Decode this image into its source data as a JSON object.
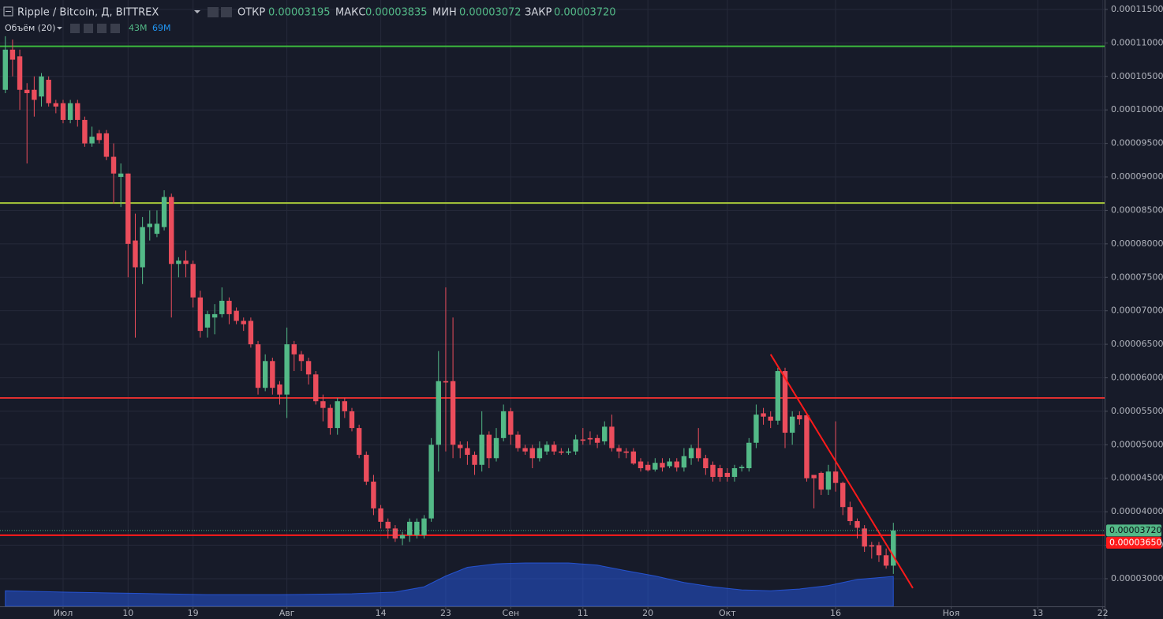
{
  "chart_data": {
    "type": "candlestick",
    "title": "Ripple / Bitcoin, Д, BITTREX",
    "ohlc_legend": [
      {
        "name": "ОТКР",
        "value": "0.00003195"
      },
      {
        "name": "МАКС",
        "value": "0.00003835"
      },
      {
        "name": "МИН",
        "value": "0.00003072"
      },
      {
        "name": "ЗАКР",
        "value": "0.00003720"
      }
    ],
    "volume_legend": {
      "name": "Объём (20)",
      "volume": "43M",
      "ma": "69M",
      "volume_color": "#53b987",
      "ma_color": "#2196f3"
    },
    "up_color": "#53b987",
    "down_color": "#eb4d5c",
    "grid": true,
    "xlim": [
      -8.74,
      144.26
    ],
    "xticks": [
      {
        "value": 0,
        "label": "Июл"
      },
      {
        "value": 9,
        "label": "10"
      },
      {
        "value": 18,
        "label": "19"
      },
      {
        "value": 31,
        "label": "Авг"
      },
      {
        "value": 44,
        "label": "14"
      },
      {
        "value": 53,
        "label": "23"
      },
      {
        "value": 62,
        "label": "Сен"
      },
      {
        "value": 72,
        "label": "11"
      },
      {
        "value": 81,
        "label": "20"
      },
      {
        "value": 92,
        "label": "Окт"
      },
      {
        "value": 107,
        "label": "16"
      },
      {
        "value": 123,
        "label": "Ноя"
      },
      {
        "value": 135,
        "label": "13"
      },
      {
        "value": 144,
        "label": "22"
      }
    ],
    "ylim": [
      2.587e-05,
      0.00011641
    ],
    "yticks": [
      {
        "value": 0.000115,
        "label": "0.00011500"
      },
      {
        "value": 0.00011,
        "label": "0.00011000"
      },
      {
        "value": 0.000105,
        "label": "0.00010500"
      },
      {
        "value": 0.0001,
        "label": "0.00010000"
      },
      {
        "value": 9.5e-05,
        "label": "0.00009500"
      },
      {
        "value": 9e-05,
        "label": "0.00009000"
      },
      {
        "value": 8.5e-05,
        "label": "0.00008500"
      },
      {
        "value": 8e-05,
        "label": "0.00008000"
      },
      {
        "value": 7.5e-05,
        "label": "0.00007500"
      },
      {
        "value": 7e-05,
        "label": "0.00007000"
      },
      {
        "value": 6.5e-05,
        "label": "0.00006500"
      },
      {
        "value": 6e-05,
        "label": "0.00006000"
      },
      {
        "value": 5.5e-05,
        "label": "0.00005500"
      },
      {
        "value": 5e-05,
        "label": "0.00005000"
      },
      {
        "value": 4.5e-05,
        "label": "0.00004500"
      },
      {
        "value": 4e-05,
        "label": "0.00004000"
      },
      {
        "value": 3.5e-05,
        "label": "0.00003500"
      },
      {
        "value": 3e-05,
        "label": "0.00003000"
      }
    ],
    "x": [
      -8,
      -7,
      -6,
      -5,
      -4,
      -3,
      -2,
      -1,
      0,
      1,
      2,
      3,
      4,
      5,
      6,
      7,
      8,
      9,
      10,
      11,
      12,
      13,
      14,
      15,
      16,
      17,
      18,
      19,
      20,
      21,
      22,
      23,
      24,
      25,
      26,
      27,
      28,
      29,
      30,
      31,
      32,
      33,
      34,
      35,
      36,
      37,
      38,
      39,
      40,
      41,
      42,
      43,
      44,
      45,
      46,
      47,
      48,
      49,
      50,
      51,
      52,
      53,
      54,
      55,
      56,
      57,
      58,
      59,
      60,
      61,
      62,
      63,
      64,
      65,
      66,
      67,
      68,
      69,
      70,
      71,
      72,
      73,
      74,
      75,
      76,
      77,
      78,
      79,
      80,
      81,
      82,
      83,
      84,
      85,
      86,
      87,
      88,
      89,
      90,
      91,
      92,
      93,
      94,
      95,
      96,
      97,
      98,
      99,
      100,
      101,
      102,
      103,
      104,
      105,
      106,
      107,
      108,
      109,
      110,
      111,
      112,
      113,
      114,
      115
    ],
    "open": [
      0.000103,
      0.000109,
      0.000108,
      0.000103,
      0.000103,
      0.000102,
      0.0001045,
      0.000101,
      0.000101,
      9.85e-05,
      0.000101,
      9.85e-05,
      9.5e-05,
      9.65e-05,
      9.65e-05,
      9.3e-05,
      9e-05,
      9.05e-05,
      8.05e-05,
      7.65e-05,
      8.25e-05,
      8.15e-05,
      8.25e-05,
      8.7e-05,
      7.7e-05,
      7.75e-05,
      7.7e-05,
      7.2e-05,
      6.75e-05,
      6.9e-05,
      6.95e-05,
      7.15e-05,
      7e-05,
      6.85e-05,
      6.85e-05,
      6.5e-05,
      5.85e-05,
      6.25e-05,
      5.9e-05,
      5.75e-05,
      6.5e-05,
      6.35e-05,
      6.25e-05,
      6.05e-05,
      5.65e-05,
      5.55e-05,
      5.25e-05,
      5.65e-05,
      5.5e-05,
      5.25e-05,
      4.85e-05,
      4.45e-05,
      4.05e-05,
      3.85e-05,
      3.75e-05,
      3.6e-05,
      3.65e-05,
      3.65e-05,
      3.65e-05,
      3.9e-05,
      5e-05,
      5.95e-05,
      5.95e-05,
      5e-05,
      4.95e-05,
      4.85e-05,
      4.7e-05,
      5.15e-05,
      4.8e-05,
      5.1e-05,
      5.5e-05,
      5.15e-05,
      4.95e-05,
      4.95e-05,
      4.8e-05,
      4.9e-05,
      5e-05,
      4.9e-05,
      4.88e-05,
      4.9e-05,
      5.08e-05,
      5.1e-05,
      5.1e-05,
      5.05e-05,
      5.27e-05,
      4.95e-05,
      4.9e-05,
      4.9e-05,
      4.75e-05,
      4.7e-05,
      4.63e-05,
      4.73e-05,
      4.68e-05,
      4.75e-05,
      4.66e-05,
      4.8e-05,
      4.95e-05,
      4.8e-05,
      4.7e-05,
      4.65e-05,
      4.58e-05,
      4.52e-05,
      4.65e-05,
      4.65e-05,
      5.03e-05,
      5.47e-05,
      5.42e-05,
      5.36e-05,
      6.1e-05,
      5.18e-05,
      5.44e-05,
      5.44e-05,
      4.55e-05,
      4.58e-05,
      4.33e-05,
      4.6e-05,
      4.43e-05,
      4.07e-05,
      3.86e-05,
      3.75e-05,
      3.5e-05,
      3.5e-05,
      3.35e-05,
      3.195e-05
    ],
    "high": [
      0.000111,
      0.0001105,
      0.000109,
      0.000104,
      0.000105,
      0.0001055,
      0.000105,
      0.0001015,
      0.0001015,
      0.0001015,
      0.0001015,
      9.9e-05,
      9.75e-05,
      9.7e-05,
      9.7e-05,
      9.5e-05,
      9.2e-05,
      9.05e-05,
      8.45e-05,
      8.4e-05,
      8.5e-05,
      8.5e-05,
      8.8e-05,
      8.75e-05,
      7.8e-05,
      7.9e-05,
      7.75e-05,
      7.3e-05,
      7e-05,
      7.1e-05,
      7.35e-05,
      7.2e-05,
      7.05e-05,
      6.9e-05,
      6.9e-05,
      6.55e-05,
      6.35e-05,
      6.3e-05,
      5.95e-05,
      6.75e-05,
      6.55e-05,
      6.4e-05,
      6.3e-05,
      6.1e-05,
      5.75e-05,
      5.6e-05,
      5.7e-05,
      5.7e-05,
      5.55e-05,
      5.3e-05,
      4.9e-05,
      4.55e-05,
      4.1e-05,
      3.9e-05,
      3.8e-05,
      3.7e-05,
      3.9e-05,
      3.9e-05,
      3.95e-05,
      5.1e-05,
      6.4e-05,
      7.35e-05,
      6.9e-05,
      5.05e-05,
      5.05e-05,
      4.9e-05,
      5.5e-05,
      5.2e-05,
      5.25e-05,
      5.6e-05,
      5.55e-05,
      5.2e-05,
      5e-05,
      5e-05,
      5.05e-05,
      5.05e-05,
      5.05e-05,
      4.95e-05,
      4.95e-05,
      5.15e-05,
      5.25e-05,
      5.2e-05,
      5.15e-05,
      5.35e-05,
      5.45e-05,
      5e-05,
      4.95e-05,
      4.95e-05,
      4.8e-05,
      4.75e-05,
      4.8e-05,
      4.8e-05,
      4.8e-05,
      4.8e-05,
      4.95e-05,
      5e-05,
      5.25e-05,
      4.85e-05,
      4.75e-05,
      4.7e-05,
      4.65e-05,
      4.7e-05,
      4.7e-05,
      5.1e-05,
      5.6e-05,
      5.55e-05,
      5.5e-05,
      6.15e-05,
      6.15e-05,
      5.5e-05,
      5.5e-05,
      5.45e-05,
      4.55e-05,
      4.6e-05,
      4.7e-05,
      5.35e-05,
      4.45e-05,
      4.15e-05,
      3.9e-05,
      3.8e-05,
      3.55e-05,
      3.55e-05,
      3.45e-05,
      3.835e-05
    ],
    "low": [
      0.0001025,
      0.000105,
      0.0001,
      9.2e-05,
      9.9e-05,
      0.0001005,
      0.0001005,
      9.95e-05,
      9.8e-05,
      9.8e-05,
      9.75e-05,
      9.45e-05,
      9.45e-05,
      9.5e-05,
      9.25e-05,
      8.6e-05,
      8.55e-05,
      7.5e-05,
      6.6e-05,
      7.4e-05,
      8.05e-05,
      8.1e-05,
      8.2e-05,
      6.9e-05,
      7.5e-05,
      7.5e-05,
      7.05e-05,
      6.6e-05,
      6.6e-05,
      6.65e-05,
      6.9e-05,
      6.8e-05,
      6.8e-05,
      6.7e-05,
      6.45e-05,
      5.75e-05,
      5.8e-05,
      5.75e-05,
      5.6e-05,
      5.4e-05,
      6.1e-05,
      6.1e-05,
      5.9e-05,
      5.6e-05,
      5.35e-05,
      5.15e-05,
      5.15e-05,
      5.4e-05,
      5.2e-05,
      4.8e-05,
      4.4e-05,
      3.95e-05,
      3.75e-05,
      3.6e-05,
      3.55e-05,
      3.5e-05,
      3.55e-05,
      3.6e-05,
      3.6e-05,
      3.85e-05,
      4.6e-05,
      4.9e-05,
      4.8e-05,
      4.8e-05,
      4.7e-05,
      4.55e-05,
      4.6e-05,
      4.65e-05,
      4.75e-05,
      5.05e-05,
      5e-05,
      4.9e-05,
      4.85e-05,
      4.65e-05,
      4.75e-05,
      4.85e-05,
      4.85e-05,
      4.85e-05,
      4.85e-05,
      4.85e-05,
      5e-05,
      5e-05,
      4.95e-05,
      5e-05,
      4.9e-05,
      4.8e-05,
      4.8e-05,
      4.7e-05,
      4.6e-05,
      4.6e-05,
      4.6e-05,
      4.6e-05,
      4.65e-05,
      4.6e-05,
      4.6e-05,
      4.7e-05,
      4.75e-05,
      4.55e-05,
      4.45e-05,
      4.45e-05,
      4.45e-05,
      4.45e-05,
      4.6e-05,
      4.6e-05,
      4.95e-05,
      5.3e-05,
      5.25e-05,
      5.3e-05,
      4.95e-05,
      5e-05,
      5.3e-05,
      4.45e-05,
      4.05e-05,
      4.25e-05,
      4.25e-05,
      4.3e-05,
      3.95e-05,
      3.8e-05,
      3.6e-05,
      3.4e-05,
      3.3e-05,
      3.25e-05,
      3.15e-05,
      3.072e-05
    ],
    "close": [
      0.000109,
      0.0001075,
      0.000103,
      0.0001025,
      0.0001015,
      0.000105,
      0.000101,
      0.0001005,
      9.85e-05,
      0.000101,
      9.85e-05,
      9.5e-05,
      9.6e-05,
      9.55e-05,
      9.3e-05,
      9.05e-05,
      9.05e-05,
      8e-05,
      7.65e-05,
      8.25e-05,
      8.3e-05,
      8.3e-05,
      8.7e-05,
      7.7e-05,
      7.75e-05,
      7.7e-05,
      7.2e-05,
      6.7e-05,
      6.95e-05,
      6.95e-05,
      7.15e-05,
      6.95e-05,
      6.85e-05,
      6.8e-05,
      6.5e-05,
      5.85e-05,
      6.25e-05,
      5.85e-05,
      5.75e-05,
      6.5e-05,
      6.35e-05,
      6.25e-05,
      6.05e-05,
      5.65e-05,
      5.55e-05,
      5.25e-05,
      5.65e-05,
      5.5e-05,
      5.25e-05,
      4.85e-05,
      4.45e-05,
      4.05e-05,
      3.85e-05,
      3.75e-05,
      3.6e-05,
      3.65e-05,
      3.85e-05,
      3.85e-05,
      3.9e-05,
      5e-05,
      5.95e-05,
      5.93e-05,
      5e-05,
      4.95e-05,
      4.85e-05,
      4.7e-05,
      5.15e-05,
      4.8e-05,
      5.1e-05,
      5.5e-05,
      5.15e-05,
      4.95e-05,
      4.9e-05,
      4.8e-05,
      4.95e-05,
      5e-05,
      4.9e-05,
      4.88e-05,
      4.9e-05,
      5.08e-05,
      5.06e-05,
      5.08e-05,
      5.03e-05,
      5.27e-05,
      4.95e-05,
      4.9e-05,
      4.88e-05,
      4.72e-05,
      4.65e-05,
      4.62e-05,
      4.73e-05,
      4.66e-05,
      4.75e-05,
      4.66e-05,
      4.83e-05,
      4.95e-05,
      4.8e-05,
      4.65e-05,
      4.52e-05,
      4.52e-05,
      4.52e-05,
      4.65e-05,
      4.67e-05,
      5.03e-05,
      5.45e-05,
      5.42e-05,
      5.36e-05,
      6.1e-05,
      5.18e-05,
      5.42e-05,
      5.38e-05,
      4.5e-05,
      4.5e-05,
      4.33e-05,
      4.6e-05,
      4.43e-05,
      4.07e-05,
      3.86e-05,
      3.76e-05,
      3.48e-05,
      3.48e-05,
      3.35e-05,
      3.195e-05,
      3.72e-05
    ],
    "volume_ma": {
      "color": "#2962ff",
      "x": [
        -8,
        0,
        10,
        20,
        30,
        40,
        46,
        50,
        53,
        56,
        60,
        64,
        70,
        74,
        78,
        82,
        86,
        90,
        94,
        98,
        102,
        106,
        110,
        115
      ],
      "values": [
        36,
        33,
        30,
        27,
        27,
        29,
        33,
        45,
        70,
        90,
        98,
        100,
        100,
        95,
        82,
        70,
        55,
        45,
        38,
        36,
        40,
        48,
        62,
        69
      ]
    },
    "hlines": [
      {
        "value": 0.0001095,
        "color": "#3dbb3d"
      },
      {
        "value": 8.61e-05,
        "color": "#a9c93a"
      },
      {
        "value": 5.7e-05,
        "color": "#e0302f"
      },
      {
        "value": 3.65e-05,
        "color": "#ff1a1a",
        "label": "0.00003650"
      }
    ],
    "last_price": {
      "value": 3.72e-05,
      "label": "0.00003720",
      "color": "#53b987"
    },
    "trendline": {
      "color": "#ff1a1a",
      "x": [
        98,
        117.7
      ],
      "values": [
        6.35e-05,
        2.86e-05
      ]
    }
  }
}
